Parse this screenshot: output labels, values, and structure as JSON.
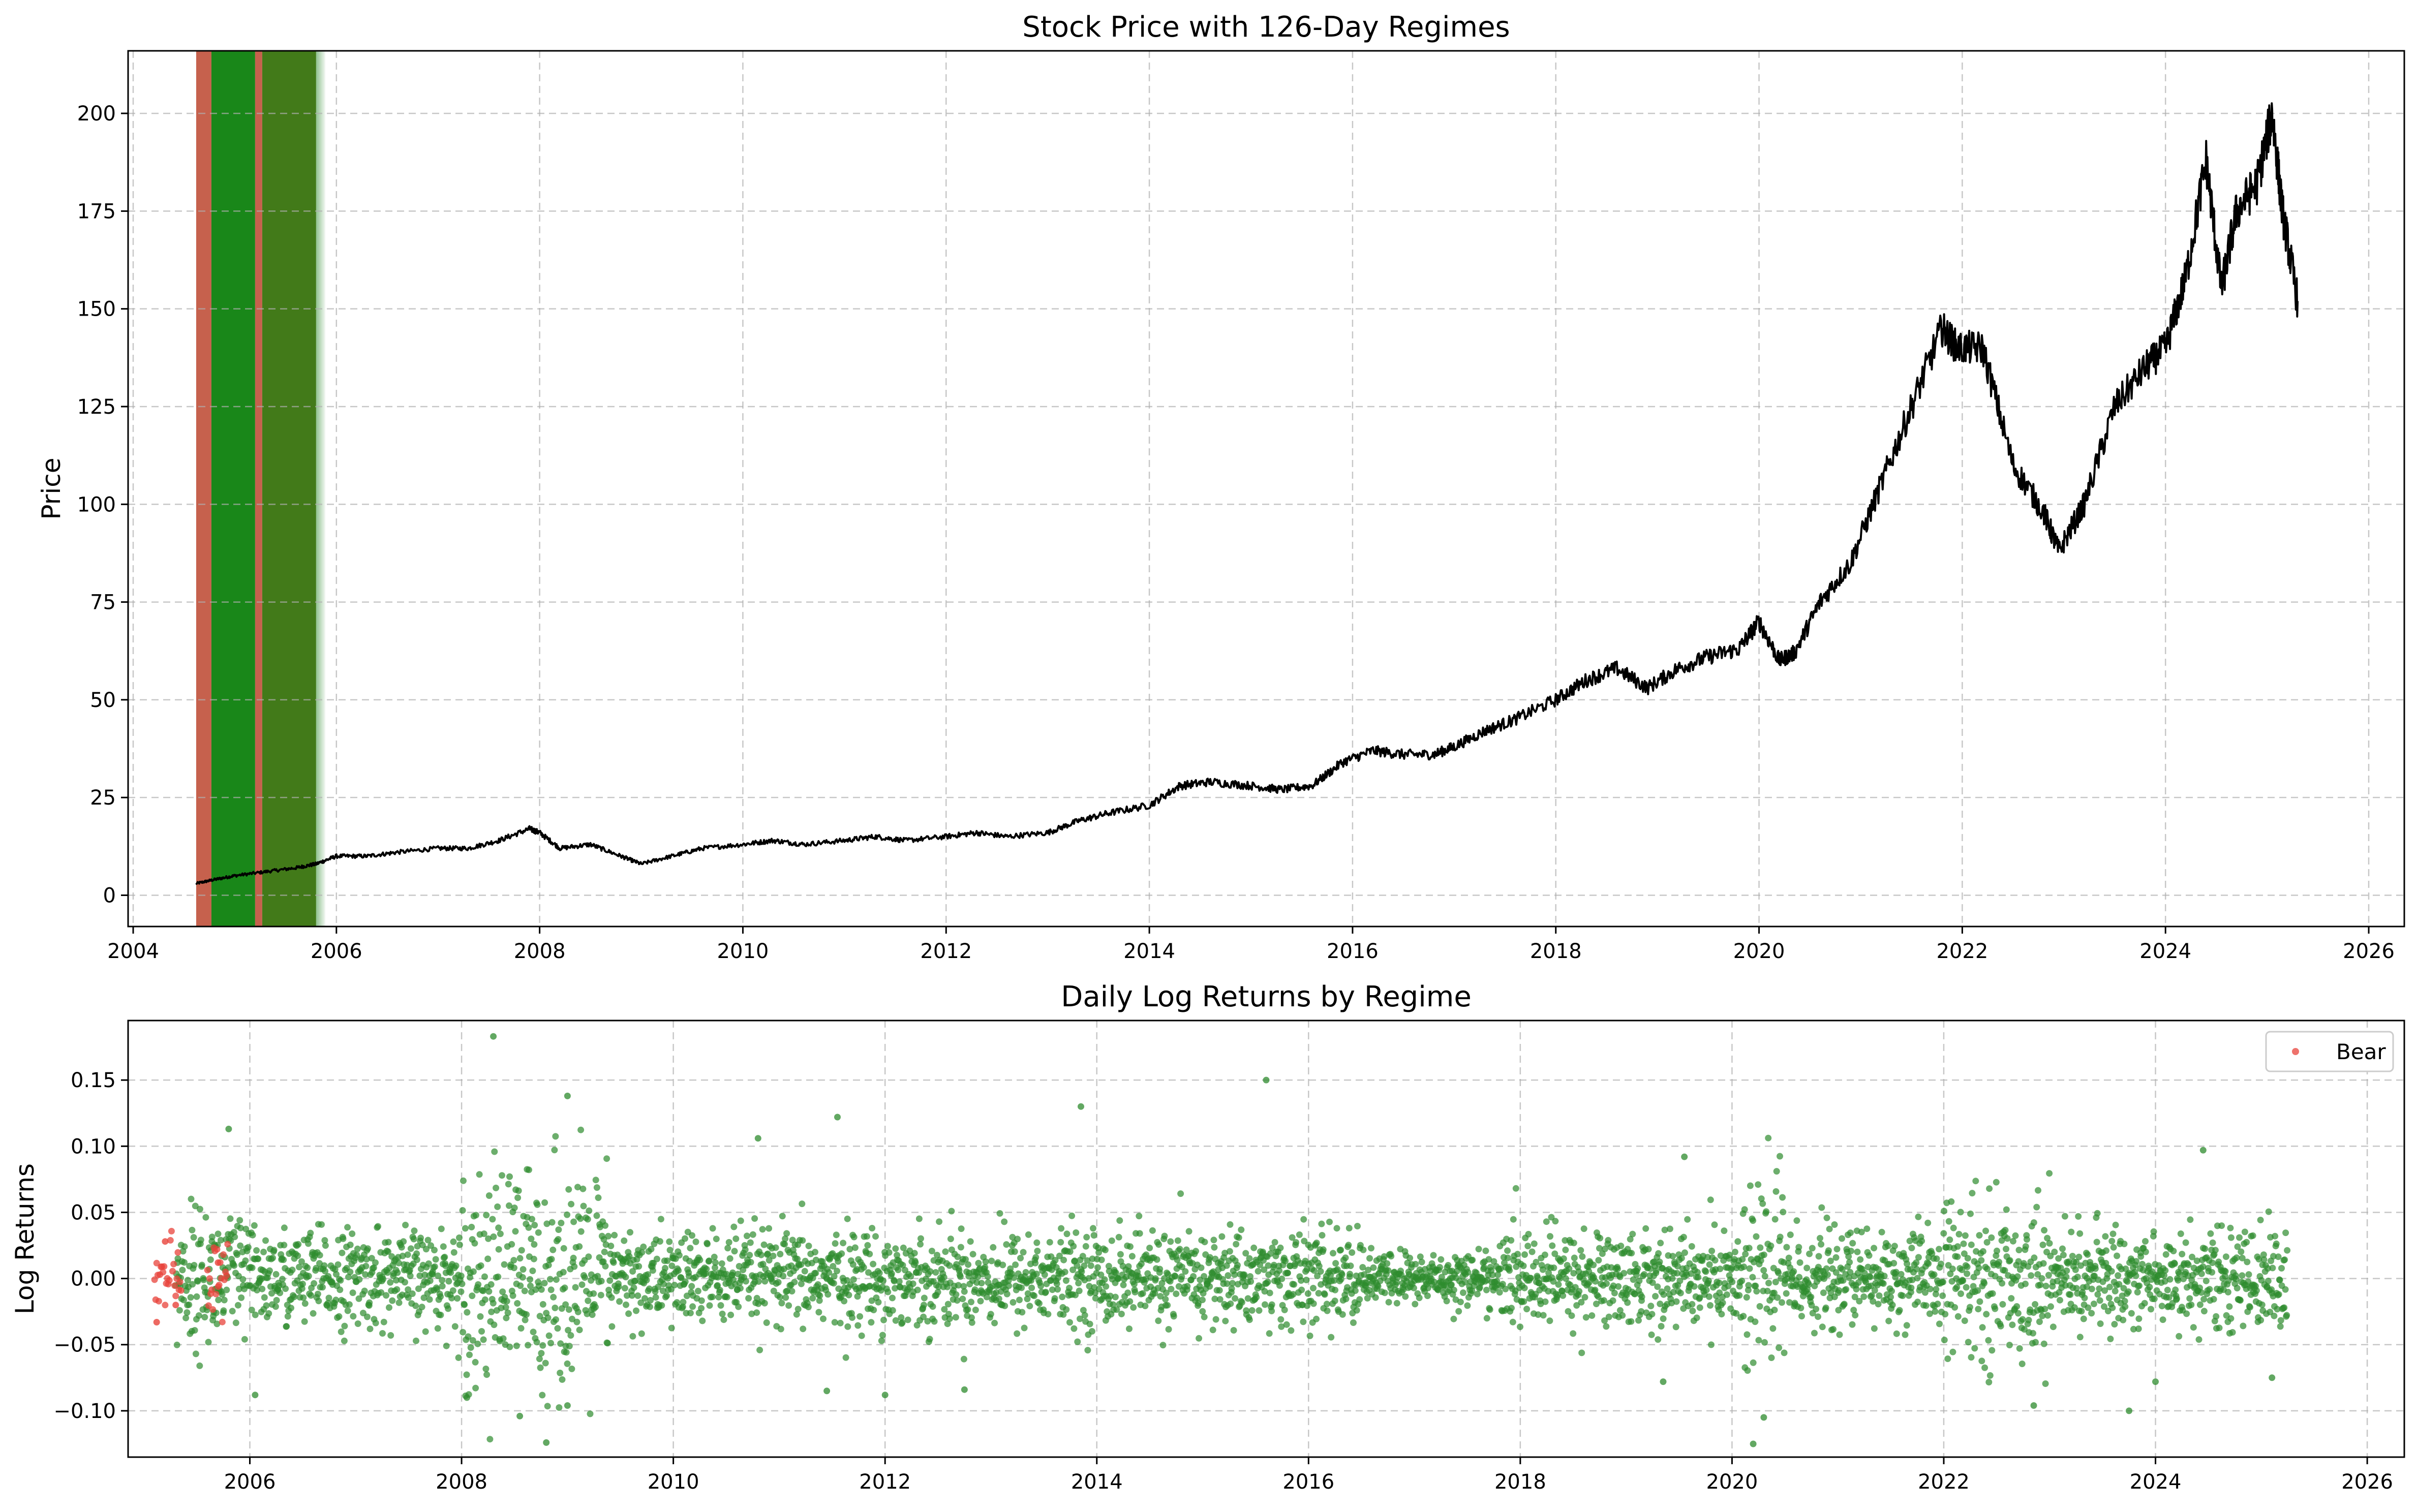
{
  "chart_data": [
    {
      "type": "line",
      "title": "Stock Price with 126-Day Regimes",
      "xlabel": "",
      "ylabel": "Price",
      "xlim": [
        2003.95,
        2026.35
      ],
      "ylim": [
        -8,
        216
      ],
      "xticks": [
        "2004",
        "2006",
        "2008",
        "2010",
        "2012",
        "2014",
        "2016",
        "2018",
        "2020",
        "2022",
        "2024",
        "2026"
      ],
      "yticks": [
        "0",
        "25",
        "50",
        "75",
        "100",
        "125",
        "150",
        "175",
        "200"
      ],
      "grid": true,
      "series_color": "#000000",
      "x": [
        2004.62,
        2004.8,
        2005.0,
        2005.3,
        2005.6,
        2005.8,
        2006.0,
        2006.3,
        2006.6,
        2007.0,
        2007.3,
        2007.6,
        2007.9,
        2008.0,
        2008.2,
        2008.5,
        2008.8,
        2009.0,
        2009.3,
        2009.6,
        2010.0,
        2010.3,
        2010.6,
        2011.0,
        2011.3,
        2011.6,
        2012.0,
        2012.3,
        2012.6,
        2013.0,
        2013.3,
        2013.6,
        2014.0,
        2014.3,
        2014.6,
        2015.0,
        2015.3,
        2015.6,
        2015.9,
        2016.2,
        2016.5,
        2016.8,
        2017.0,
        2017.3,
        2017.6,
        2018.0,
        2018.3,
        2018.6,
        2018.9,
        2019.2,
        2019.5,
        2019.8,
        2020.0,
        2020.2,
        2020.35,
        2020.6,
        2020.9,
        2021.2,
        2021.5,
        2021.8,
        2021.95,
        2022.2,
        2022.5,
        2022.8,
        2022.95,
        2023.2,
        2023.5,
        2023.8,
        2024.0,
        2024.2,
        2024.4,
        2024.55,
        2024.7,
        2024.9,
        2025.05,
        2025.15,
        2025.3
      ],
      "values": [
        3,
        4,
        5,
        6,
        7,
        8,
        10,
        10,
        11,
        12,
        12,
        14,
        17,
        16,
        12,
        13,
        10,
        8,
        10,
        12,
        13,
        14,
        13,
        14,
        15,
        14,
        15,
        16,
        15,
        16,
        19,
        21,
        23,
        28,
        29,
        28,
        27,
        28,
        34,
        37,
        36,
        36,
        38,
        42,
        45,
        50,
        55,
        58,
        53,
        58,
        61,
        63,
        70,
        60,
        62,
        75,
        85,
        105,
        125,
        145,
        140,
        140,
        110,
        98,
        88,
        100,
        125,
        135,
        140,
        158,
        188,
        155,
        175,
        182,
        200,
        175,
        152
      ],
      "regime_bands": [
        {
          "start": 2004.62,
          "end": 2004.77,
          "regime": "bear",
          "color": "#c0503a"
        },
        {
          "start": 2004.77,
          "end": 2005.2,
          "regime": "bull",
          "color": "#007a00"
        },
        {
          "start": 2005.2,
          "end": 2005.27,
          "regime": "bear",
          "color": "#c0503a"
        },
        {
          "start": 2005.27,
          "end": 2005.8,
          "regime": "bull",
          "color": "#2e6b00"
        }
      ]
    },
    {
      "type": "scatter",
      "title": "Daily Log Returns by Regime",
      "xlabel": "",
      "ylabel": "Log Returns",
      "xlim": [
        2004.85,
        2026.35
      ],
      "ylim": [
        -0.135,
        0.195
      ],
      "xticks": [
        "2006",
        "2008",
        "2010",
        "2012",
        "2014",
        "2016",
        "2018",
        "2020",
        "2022",
        "2024",
        "2026"
      ],
      "yticks": [
        "−0.10",
        "−0.05",
        "0.00",
        "0.05",
        "0.10",
        "0.15"
      ],
      "grid": true,
      "legend": {
        "placement": "top-right",
        "entries": [
          "Bear"
        ]
      },
      "series": [
        {
          "name": "Bear",
          "color": "#e8433b",
          "x_range": [
            2005.1,
            2005.8
          ],
          "spread": 0.015,
          "sample_points": [
            [
              2005.12,
              -0.033
            ],
            [
              2005.2,
              0.028
            ],
            [
              2005.3,
              -0.02
            ],
            [
              2005.7,
              0.012
            ]
          ]
        },
        {
          "color": "#2e8b2e",
          "x_range": [
            2005.3,
            2025.25
          ],
          "spread": 0.018,
          "sample_points": [
            [
              2008.3,
              0.183
            ],
            [
              2015.6,
              0.15
            ],
            [
              2009.0,
              0.138
            ],
            [
              2013.85,
              0.13
            ],
            [
              2011.55,
              0.122
            ],
            [
              2005.8,
              0.113
            ],
            [
              2010.8,
              0.106
            ],
            [
              2024.45,
              0.097
            ],
            [
              2019.55,
              0.092
            ],
            [
              2008.55,
              -0.104
            ],
            [
              2008.8,
              -0.124
            ],
            [
              2020.2,
              -0.125
            ],
            [
              2023.75,
              -0.1
            ],
            [
              2022.85,
              -0.096
            ],
            [
              2009.0,
              -0.096
            ],
            [
              2008.05,
              -0.09
            ],
            [
              2006.05,
              -0.088
            ],
            [
              2012.0,
              -0.088
            ],
            [
              2012.75,
              -0.084
            ],
            [
              2011.45,
              -0.085
            ],
            [
              2024.0,
              -0.078
            ],
            [
              2025.1,
              -0.075
            ],
            [
              2019.35,
              -0.078
            ],
            [
              2020.3,
              -0.105
            ]
          ]
        }
      ]
    }
  ]
}
